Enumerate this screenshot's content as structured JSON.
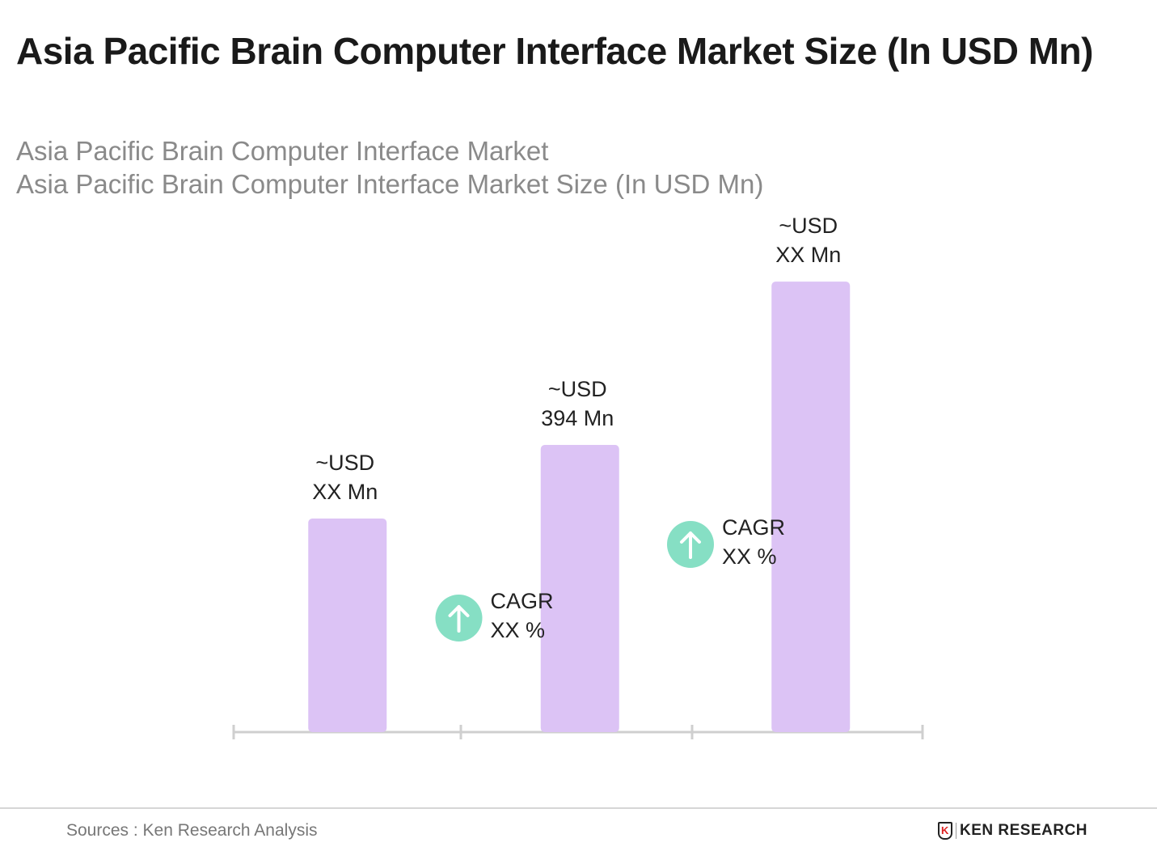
{
  "header": {
    "title": "Asia Pacific Brain Computer Interface Market Size (In USD Mn)"
  },
  "subtitle": [
    "Asia Pacific Brain Computer Interface Market",
    "Asia Pacific Brain Computer Interface Market Size (In USD Mn)"
  ],
  "chart_data": {
    "type": "bar",
    "title": "Asia Pacific Brain Computer Interface Market Size (In USD Mn)",
    "categories": [
      "",
      "",
      ""
    ],
    "values": [
      293,
      394,
      618
    ],
    "data_labels": [
      [
        "~USD",
        "XX Mn"
      ],
      [
        "~USD",
        "394 Mn"
      ],
      [
        "~USD",
        "XX Mn"
      ]
    ],
    "annotations": [
      {
        "label": "CAGR",
        "value": "XX %",
        "icon": "arrow-up-icon"
      },
      {
        "label": "CAGR",
        "value": "XX %",
        "icon": "arrow-up-icon"
      }
    ],
    "bar_color": "#dcc3f5",
    "cagr_color": "#86dfc4",
    "axis_color": "#cfcfcf",
    "xlabel": "",
    "ylabel": "",
    "grid": false
  },
  "footer": {
    "source": "Sources : Ken Research Analysis",
    "logo_text": "KEN RESEARCH",
    "logo_mark": "K"
  }
}
